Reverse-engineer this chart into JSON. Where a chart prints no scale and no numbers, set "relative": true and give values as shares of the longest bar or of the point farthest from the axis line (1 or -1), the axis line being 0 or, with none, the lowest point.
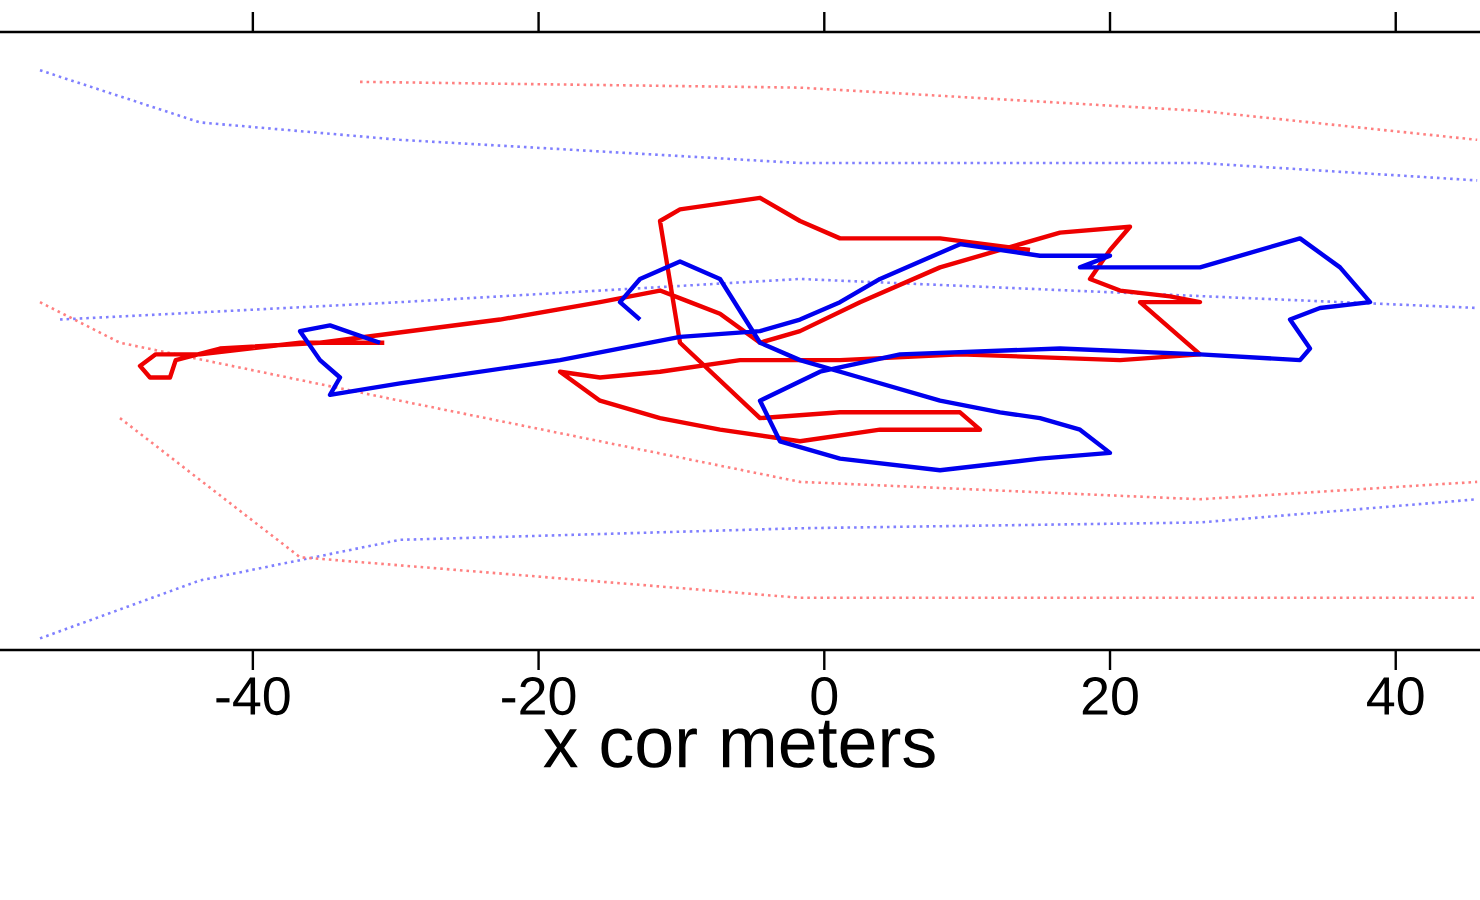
{
  "chart_data": {
    "type": "line",
    "xlabel": "x cor meters",
    "xlim": [
      -57.7,
      45.9
    ],
    "xticks": [
      -40,
      -20,
      0,
      20,
      40
    ],
    "relative": true,
    "tick_labels": "x",
    "series": [
      {
        "color": "#8080ff",
        "line_style": "dotted",
        "x": [
          -54.9,
          -43.7,
          -29.7,
          -1.7,
          26.3,
          45.7
        ],
        "values": [
          1.0,
          0.91,
          0.88,
          0.84,
          0.84,
          0.81
        ]
      },
      {
        "color": "#8080ff",
        "line_style": "dotted",
        "x": [
          -54.9,
          -43.7,
          -29.7,
          -1.7,
          26.3,
          45.7
        ],
        "values": [
          0.02,
          0.12,
          0.19,
          0.21,
          0.22,
          0.26
        ]
      },
      {
        "color": "#ff8080",
        "line_style": "dotted",
        "x": [
          -54.9,
          -49.3,
          -29.7,
          -1.7,
          26.3,
          45.7
        ],
        "values": [
          0.6,
          0.53,
          0.43,
          0.29,
          0.26,
          0.29
        ]
      },
      {
        "color": "#ff8080",
        "line_style": "dotted",
        "x": [
          -32.5,
          -1.7,
          26.3,
          45.7
        ],
        "values": [
          0.98,
          0.97,
          0.93,
          0.88
        ]
      },
      {
        "color": "#ff8080",
        "line_style": "dotted",
        "x": [
          -49.3,
          -36.7,
          -1.7,
          45.7
        ],
        "values": [
          0.4,
          0.16,
          0.09,
          0.09
        ]
      },
      {
        "color": "#8080ff",
        "line_style": "dotted",
        "x": [
          -53.5,
          -29.7,
          -1.7,
          45.7
        ],
        "values": [
          0.57,
          0.6,
          0.64,
          0.59
        ]
      },
      {
        "color": "#ee0000",
        "line_style": "solid",
        "x": [
          -30.8,
          -36.7,
          -43.7,
          -46.8,
          -47.9,
          -47.2,
          -45.8,
          -45.4,
          -42.3,
          -35.3,
          -22.7,
          -15.7,
          -11.5,
          -9.4,
          -7.3,
          -4.5,
          -1.7,
          2.5,
          8.1,
          12.3,
          16.5,
          21.4,
          20.0,
          18.6,
          20.7,
          24.2,
          26.3,
          22.1,
          26.3,
          20.7,
          9.5,
          1.1,
          -5.9,
          -11.5,
          -15.7,
          -18.5,
          -15.7,
          -11.5,
          -7.3,
          -1.7,
          3.9,
          10.9,
          9.5,
          1.1,
          -4.5,
          -10.1,
          -11.5,
          -10.1,
          -4.5,
          -1.7,
          1.1,
          8.1,
          14.4
        ],
        "values": [
          0.53,
          0.53,
          0.51,
          0.51,
          0.49,
          0.47,
          0.47,
          0.5,
          0.52,
          0.53,
          0.57,
          0.6,
          0.62,
          0.6,
          0.58,
          0.53,
          0.55,
          0.6,
          0.66,
          0.69,
          0.72,
          0.73,
          0.69,
          0.64,
          0.62,
          0.61,
          0.6,
          0.6,
          0.51,
          0.5,
          0.51,
          0.5,
          0.5,
          0.48,
          0.47,
          0.48,
          0.43,
          0.4,
          0.38,
          0.36,
          0.38,
          0.38,
          0.41,
          0.41,
          0.4,
          0.53,
          0.74,
          0.76,
          0.78,
          0.74,
          0.71,
          0.71,
          0.69
        ]
      },
      {
        "color": "#0000ee",
        "line_style": "solid",
        "x": [
          -31.1,
          -34.6,
          -36.7,
          -35.3,
          -33.9,
          -34.6,
          -29.7,
          -18.5,
          -10.1,
          -4.5,
          -1.7,
          1.1,
          3.9,
          6.7,
          9.5,
          15.1,
          20.0,
          17.9,
          26.3,
          30.5,
          33.3,
          36.1,
          38.2,
          34.7,
          32.6,
          34.0,
          33.3,
          26.3,
          16.5,
          5.3,
          -0.3,
          -4.5,
          -3.1,
          1.1,
          8.1,
          15.1,
          20.0,
          17.9,
          15.1,
          12.3,
          8.1,
          2.5,
          -1.7,
          -4.5,
          -7.3,
          -10.1,
          -12.9,
          -14.3,
          -12.9
        ],
        "values": [
          0.53,
          0.56,
          0.55,
          0.5,
          0.47,
          0.44,
          0.46,
          0.5,
          0.54,
          0.55,
          0.57,
          0.6,
          0.64,
          0.67,
          0.7,
          0.68,
          0.68,
          0.66,
          0.66,
          0.69,
          0.71,
          0.66,
          0.6,
          0.59,
          0.57,
          0.52,
          0.5,
          0.51,
          0.52,
          0.51,
          0.48,
          0.43,
          0.36,
          0.33,
          0.31,
          0.33,
          0.34,
          0.38,
          0.4,
          0.41,
          0.43,
          0.47,
          0.5,
          0.53,
          0.64,
          0.67,
          0.64,
          0.6,
          0.57
        ]
      }
    ]
  }
}
